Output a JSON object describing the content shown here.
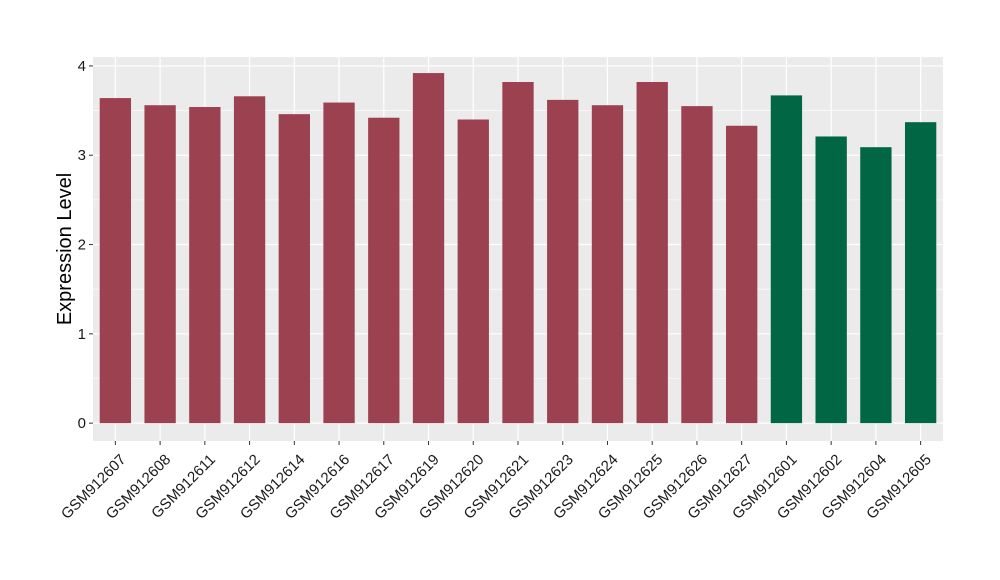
{
  "chart_data": {
    "type": "bar",
    "title": "",
    "xlabel": "",
    "ylabel": "Expression Level",
    "ylim": [
      -0.2,
      4.1
    ],
    "yticks": [
      0,
      1,
      2,
      3,
      4
    ],
    "grid": true,
    "legend": "none",
    "categories": [
      "GSM912607",
      "GSM912608",
      "GSM912611",
      "GSM912612",
      "GSM912614",
      "GSM912616",
      "GSM912617",
      "GSM912619",
      "GSM912620",
      "GSM912621",
      "GSM912623",
      "GSM912624",
      "GSM912625",
      "GSM912626",
      "GSM912627",
      "GSM912601",
      "GSM912602",
      "GSM912604",
      "GSM912605"
    ],
    "values": [
      3.64,
      3.56,
      3.54,
      3.66,
      3.46,
      3.59,
      3.42,
      3.92,
      3.4,
      3.82,
      3.62,
      3.56,
      3.82,
      3.55,
      3.33,
      3.67,
      3.21,
      3.09,
      3.37
    ],
    "groups": [
      "a",
      "a",
      "a",
      "a",
      "a",
      "a",
      "a",
      "a",
      "a",
      "a",
      "a",
      "a",
      "a",
      "a",
      "a",
      "b",
      "b",
      "b",
      "b"
    ],
    "group_colors": {
      "a": "#9b4150",
      "b": "#006644"
    },
    "panel_background": "#ebebeb",
    "gridline_color": "#ffffff"
  }
}
